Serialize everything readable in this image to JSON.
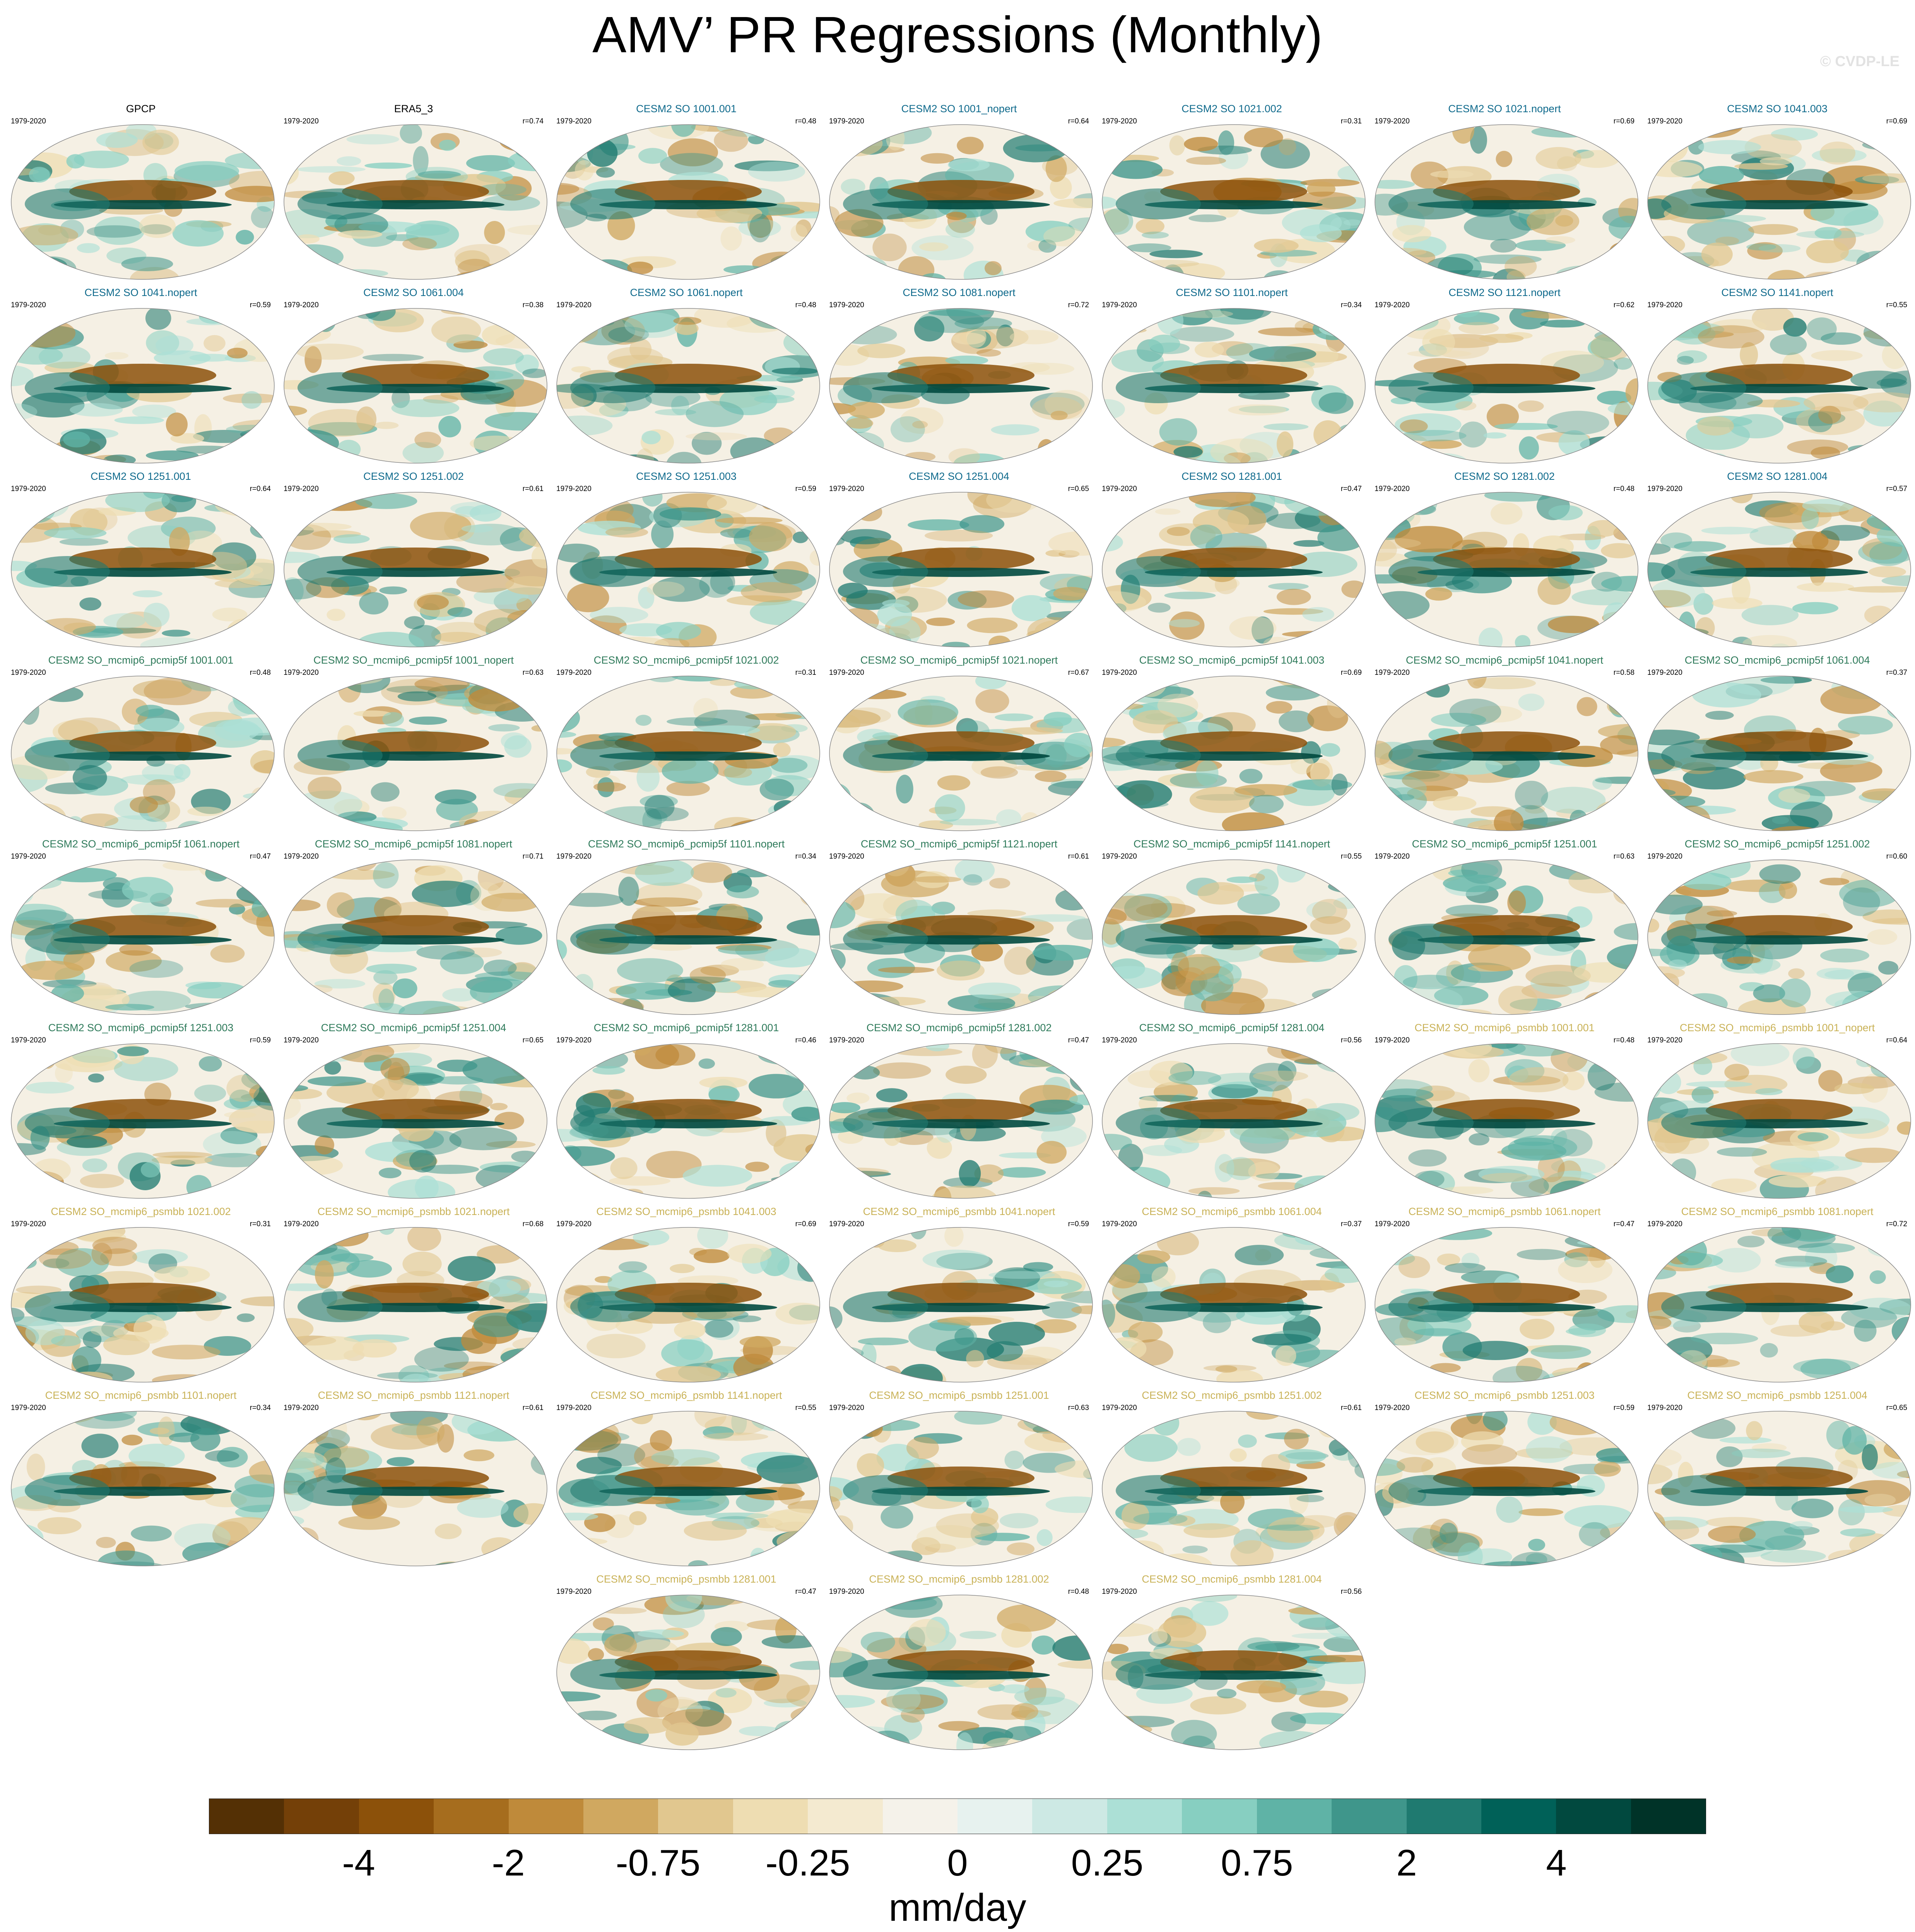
{
  "title": "AMV’ PR Regressions (Monthly)",
  "watermark": "© CVDP-LE",
  "chart_data": {
    "type": "heatmap",
    "title": "AMV’ PR Regressions (Monthly)",
    "projection": "global map (Robinson-like) panels, 7 per row",
    "panel_period": "1979-2020",
    "colors_by_group": {
      "obs": "#000000",
      "CESM2 SO": "#0f6a8c",
      "CESM2 SO_mcmip6_pcmip5f": "#2e7a5a",
      "CESM2 SO_mcmip6_psmbb": "#c9b257"
    },
    "panels": [
      {
        "name": "GPCP",
        "group": "obs",
        "r": ""
      },
      {
        "name": "ERA5_3",
        "group": "obs",
        "r": "r=0.74"
      },
      {
        "name": "CESM2 SO 1001.001",
        "group": "CESM2 SO",
        "r": "r=0.48"
      },
      {
        "name": "CESM2 SO 1001_nopert",
        "group": "CESM2 SO",
        "r": "r=0.64"
      },
      {
        "name": "CESM2 SO 1021.002",
        "group": "CESM2 SO",
        "r": "r=0.31"
      },
      {
        "name": "CESM2 SO 1021.nopert",
        "group": "CESM2 SO",
        "r": "r=0.69"
      },
      {
        "name": "CESM2 SO 1041.003",
        "group": "CESM2 SO",
        "r": "r=0.69"
      },
      {
        "name": "CESM2 SO 1041.nopert",
        "group": "CESM2 SO",
        "r": "r=0.59"
      },
      {
        "name": "CESM2 SO 1061.004",
        "group": "CESM2 SO",
        "r": "r=0.38"
      },
      {
        "name": "CESM2 SO 1061.nopert",
        "group": "CESM2 SO",
        "r": "r=0.48"
      },
      {
        "name": "CESM2 SO 1081.nopert",
        "group": "CESM2 SO",
        "r": "r=0.72"
      },
      {
        "name": "CESM2 SO 1101.nopert",
        "group": "CESM2 SO",
        "r": "r=0.34"
      },
      {
        "name": "CESM2 SO 1121.nopert",
        "group": "CESM2 SO",
        "r": "r=0.62"
      },
      {
        "name": "CESM2 SO 1141.nopert",
        "group": "CESM2 SO",
        "r": "r=0.55"
      },
      {
        "name": "CESM2 SO 1251.001",
        "group": "CESM2 SO",
        "r": "r=0.64"
      },
      {
        "name": "CESM2 SO 1251.002",
        "group": "CESM2 SO",
        "r": "r=0.61"
      },
      {
        "name": "CESM2 SO 1251.003",
        "group": "CESM2 SO",
        "r": "r=0.59"
      },
      {
        "name": "CESM2 SO 1251.004",
        "group": "CESM2 SO",
        "r": "r=0.65"
      },
      {
        "name": "CESM2 SO 1281.001",
        "group": "CESM2 SO",
        "r": "r=0.47"
      },
      {
        "name": "CESM2 SO 1281.002",
        "group": "CESM2 SO",
        "r": "r=0.48"
      },
      {
        "name": "CESM2 SO 1281.004",
        "group": "CESM2 SO",
        "r": "r=0.57"
      },
      {
        "name": "CESM2 SO_mcmip6_pcmip5f 1001.001",
        "group": "CESM2 SO_mcmip6_pcmip5f",
        "r": "r=0.48"
      },
      {
        "name": "CESM2 SO_mcmip6_pcmip5f 1001_nopert",
        "group": "CESM2 SO_mcmip6_pcmip5f",
        "r": "r=0.63"
      },
      {
        "name": "CESM2 SO_mcmip6_pcmip5f 1021.002",
        "group": "CESM2 SO_mcmip6_pcmip5f",
        "r": "r=0.31"
      },
      {
        "name": "CESM2 SO_mcmip6_pcmip5f 1021.nopert",
        "group": "CESM2 SO_mcmip6_pcmip5f",
        "r": "r=0.67"
      },
      {
        "name": "CESM2 SO_mcmip6_pcmip5f 1041.003",
        "group": "CESM2 SO_mcmip6_pcmip5f",
        "r": "r=0.69"
      },
      {
        "name": "CESM2 SO_mcmip6_pcmip5f 1041.nopert",
        "group": "CESM2 SO_mcmip6_pcmip5f",
        "r": "r=0.58"
      },
      {
        "name": "CESM2 SO_mcmip6_pcmip5f 1061.004",
        "group": "CESM2 SO_mcmip6_pcmip5f",
        "r": "r=0.37"
      },
      {
        "name": "CESM2 SO_mcmip6_pcmip5f 1061.nopert",
        "group": "CESM2 SO_mcmip6_pcmip5f",
        "r": "r=0.47"
      },
      {
        "name": "CESM2 SO_mcmip6_pcmip5f 1081.nopert",
        "group": "CESM2 SO_mcmip6_pcmip5f",
        "r": "r=0.71"
      },
      {
        "name": "CESM2 SO_mcmip6_pcmip5f 1101.nopert",
        "group": "CESM2 SO_mcmip6_pcmip5f",
        "r": "r=0.34"
      },
      {
        "name": "CESM2 SO_mcmip6_pcmip5f 1121.nopert",
        "group": "CESM2 SO_mcmip6_pcmip5f",
        "r": "r=0.61"
      },
      {
        "name": "CESM2 SO_mcmip6_pcmip5f 1141.nopert",
        "group": "CESM2 SO_mcmip6_pcmip5f",
        "r": "r=0.55"
      },
      {
        "name": "CESM2 SO_mcmip6_pcmip5f 1251.001",
        "group": "CESM2 SO_mcmip6_pcmip5f",
        "r": "r=0.63"
      },
      {
        "name": "CESM2 SO_mcmip6_pcmip5f 1251.002",
        "group": "CESM2 SO_mcmip6_pcmip5f",
        "r": "r=0.60"
      },
      {
        "name": "CESM2 SO_mcmip6_pcmip5f 1251.003",
        "group": "CESM2 SO_mcmip6_pcmip5f",
        "r": "r=0.59"
      },
      {
        "name": "CESM2 SO_mcmip6_pcmip5f 1251.004",
        "group": "CESM2 SO_mcmip6_pcmip5f",
        "r": "r=0.65"
      },
      {
        "name": "CESM2 SO_mcmip6_pcmip5f 1281.001",
        "group": "CESM2 SO_mcmip6_pcmip5f",
        "r": "r=0.46"
      },
      {
        "name": "CESM2 SO_mcmip6_pcmip5f 1281.002",
        "group": "CESM2 SO_mcmip6_pcmip5f",
        "r": "r=0.47"
      },
      {
        "name": "CESM2 SO_mcmip6_pcmip5f 1281.004",
        "group": "CESM2 SO_mcmip6_pcmip5f",
        "r": "r=0.56"
      },
      {
        "name": "CESM2 SO_mcmip6_psmbb 1001.001",
        "group": "CESM2 SO_mcmip6_psmbb",
        "r": "r=0.48"
      },
      {
        "name": "CESM2 SO_mcmip6_psmbb 1001_nopert",
        "group": "CESM2 SO_mcmip6_psmbb",
        "r": "r=0.64"
      },
      {
        "name": "CESM2 SO_mcmip6_psmbb 1021.002",
        "group": "CESM2 SO_mcmip6_psmbb",
        "r": "r=0.31"
      },
      {
        "name": "CESM2 SO_mcmip6_psmbb 1021.nopert",
        "group": "CESM2 SO_mcmip6_psmbb",
        "r": "r=0.68"
      },
      {
        "name": "CESM2 SO_mcmip6_psmbb 1041.003",
        "group": "CESM2 SO_mcmip6_psmbb",
        "r": "r=0.69"
      },
      {
        "name": "CESM2 SO_mcmip6_psmbb 1041.nopert",
        "group": "CESM2 SO_mcmip6_psmbb",
        "r": "r=0.59"
      },
      {
        "name": "CESM2 SO_mcmip6_psmbb 1061.004",
        "group": "CESM2 SO_mcmip6_psmbb",
        "r": "r=0.37"
      },
      {
        "name": "CESM2 SO_mcmip6_psmbb 1061.nopert",
        "group": "CESM2 SO_mcmip6_psmbb",
        "r": "r=0.47"
      },
      {
        "name": "CESM2 SO_mcmip6_psmbb 1081.nopert",
        "group": "CESM2 SO_mcmip6_psmbb",
        "r": "r=0.72"
      },
      {
        "name": "CESM2 SO_mcmip6_psmbb 1101.nopert",
        "group": "CESM2 SO_mcmip6_psmbb",
        "r": "r=0.34"
      },
      {
        "name": "CESM2 SO_mcmip6_psmbb 1121.nopert",
        "group": "CESM2 SO_mcmip6_psmbb",
        "r": "r=0.61"
      },
      {
        "name": "CESM2 SO_mcmip6_psmbb 1141.nopert",
        "group": "CESM2 SO_mcmip6_psmbb",
        "r": "r=0.55"
      },
      {
        "name": "CESM2 SO_mcmip6_psmbb 1251.001",
        "group": "CESM2 SO_mcmip6_psmbb",
        "r": "r=0.63"
      },
      {
        "name": "CESM2 SO_mcmip6_psmbb 1251.002",
        "group": "CESM2 SO_mcmip6_psmbb",
        "r": "r=0.61"
      },
      {
        "name": "CESM2 SO_mcmip6_psmbb 1251.003",
        "group": "CESM2 SO_mcmip6_psmbb",
        "r": "r=0.59"
      },
      {
        "name": "CESM2 SO_mcmip6_psmbb 1251.004",
        "group": "CESM2 SO_mcmip6_psmbb",
        "r": "r=0.65"
      },
      {
        "name": "CESM2 SO_mcmip6_psmbb 1281.001",
        "group": "CESM2 SO_mcmip6_psmbb",
        "r": "r=0.47"
      },
      {
        "name": "CESM2 SO_mcmip6_psmbb 1281.002",
        "group": "CESM2 SO_mcmip6_psmbb",
        "r": "r=0.48"
      },
      {
        "name": "CESM2 SO_mcmip6_psmbb 1281.004",
        "group": "CESM2 SO_mcmip6_psmbb",
        "r": "r=0.56"
      }
    ],
    "colorbar": {
      "units": "mm/day",
      "colors": [
        "#543005",
        "#744008",
        "#8c510a",
        "#a66d1e",
        "#bf8a3a",
        "#d0a860",
        "#e1c78f",
        "#eeddb2",
        "#f4ead0",
        "#f5f2ea",
        "#e7f2ef",
        "#cde9e4",
        "#ace0d6",
        "#87cfc1",
        "#5fb3a6",
        "#3f968b",
        "#1f7a70",
        "#006158",
        "#01493f",
        "#003328"
      ],
      "ticks": [
        {
          "label": "-4",
          "boundary": 2
        },
        {
          "label": "-2",
          "boundary": 4
        },
        {
          "label": "-0.75",
          "boundary": 6
        },
        {
          "label": "-0.25",
          "boundary": 8
        },
        {
          "label": "0",
          "boundary": 10
        },
        {
          "label": "0.25",
          "boundary": 12
        },
        {
          "label": "0.75",
          "boundary": 14
        },
        {
          "label": "2",
          "boundary": 16
        },
        {
          "label": "4",
          "boundary": 18
        }
      ]
    }
  }
}
